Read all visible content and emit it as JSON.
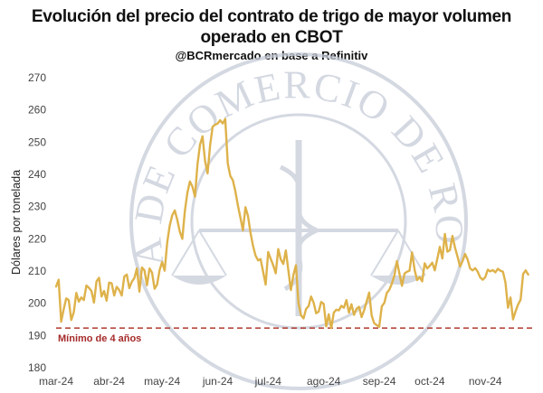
{
  "header": {
    "title_line1": "Evolución del precio del contrato de trigo de mayor volumen",
    "title_line2": "operado en CBOT",
    "subtitle": "@BCRmercado en base a Refinitiv"
  },
  "watermark": {
    "text": "BOLSA DE COMERCIO DE ROSARIO",
    "color": "#c6ccd8"
  },
  "chart_data": {
    "type": "line",
    "title": "Evolución del precio del contrato de trigo de mayor volumen operado en CBOT",
    "subtitle": "@BCRmercado en base a Refinitiv",
    "xlabel": "",
    "ylabel": "Dólares por tonelada",
    "ylim": [
      180,
      270
    ],
    "yticks": [
      180,
      190,
      200,
      210,
      220,
      230,
      240,
      250,
      260,
      270
    ],
    "xlim": [
      0,
      190
    ],
    "xticks": [
      {
        "label": "mar-24",
        "x": 0
      },
      {
        "label": "abr-24",
        "x": 21
      },
      {
        "label": "may-24",
        "x": 42
      },
      {
        "label": "jun-24",
        "x": 64
      },
      {
        "label": "jul-24",
        "x": 84
      },
      {
        "label": "ago-24",
        "x": 106
      },
      {
        "label": "sep-24",
        "x": 128
      },
      {
        "label": "oct-24",
        "x": 148
      },
      {
        "label": "nov-24",
        "x": 170
      }
    ],
    "grid": false,
    "series": [
      {
        "color": "#deb24a",
        "values": [
          205.2,
          207.3,
          194.3,
          198.1,
          201.5,
          201.0,
          194.8,
          197.2,
          203.2,
          200.5,
          201.8,
          201.0,
          205.5,
          204.8,
          203.8,
          200.2,
          206.8,
          207.9,
          202.1,
          203.8,
          200.8,
          206.4,
          206.2,
          202.4,
          205.1,
          204.1,
          202.4,
          208.3,
          208.9,
          204.7,
          206.7,
          207.8,
          210.8,
          203.6,
          211.1,
          210.2,
          205.6,
          210.8,
          209.5,
          204.5,
          205.8,
          210.3,
          212.8,
          210.1,
          218.8,
          224.1,
          227.3,
          228.8,
          225.9,
          222.2,
          220.0,
          228.6,
          234.3,
          237.8,
          236.2,
          233.1,
          243.1,
          249.2,
          251.8,
          244.2,
          240.3,
          249.0,
          254.8,
          255.4,
          255.8,
          256.8,
          255.8,
          257.2,
          243.4,
          239.5,
          238.2,
          234.8,
          230.4,
          226.6,
          222.6,
          229.8,
          227.1,
          221.9,
          217.8,
          214.8,
          213.3,
          213.7,
          209.8,
          205.8,
          215.9,
          213.8,
          211.8,
          209.3,
          216.8,
          213.6,
          212.2,
          216.4,
          210.2,
          204.1,
          208.8,
          211.8,
          200.1,
          196.3,
          195.3,
          198.2,
          199.1,
          202.1,
          200.2,
          196.9,
          197.4,
          200.4,
          199.8,
          192.8,
          196.6,
          192.3,
          197.1,
          198.0,
          197.8,
          199.2,
          198.6,
          201.0,
          197.1,
          199.7,
          196.4,
          198.3,
          198.9,
          195.7,
          197.8,
          200.5,
          203.3,
          196.2,
          193.8,
          193.2,
          192.7,
          199.0,
          200.1,
          203.2,
          204.2,
          206.1,
          208.6,
          213.1,
          209.2,
          205.4,
          209.2,
          209.8,
          210.1,
          215.8,
          210.4,
          207.2,
          208.1,
          206.8,
          212.4,
          210.8,
          211.6,
          212.6,
          210.2,
          213.8,
          217.5,
          213.9,
          221.5,
          216.0,
          216.5,
          220.9,
          217.3,
          214.5,
          211.4,
          213.1,
          215.3,
          213.6,
          210.8,
          210.2,
          210.9,
          209.8,
          208.0,
          207.3,
          208.1,
          210.4,
          209.9,
          210.3,
          209.6,
          210.7,
          210.1,
          209.8,
          206.4,
          198.6,
          201.8,
          195.0,
          197.5,
          199.6,
          201.1,
          209.1,
          210.2,
          208.9
        ]
      }
    ],
    "reference_line": {
      "y": 192.3,
      "label": "Mínimo de 4 años",
      "color": "#b03a2e",
      "style": "dashed"
    }
  }
}
